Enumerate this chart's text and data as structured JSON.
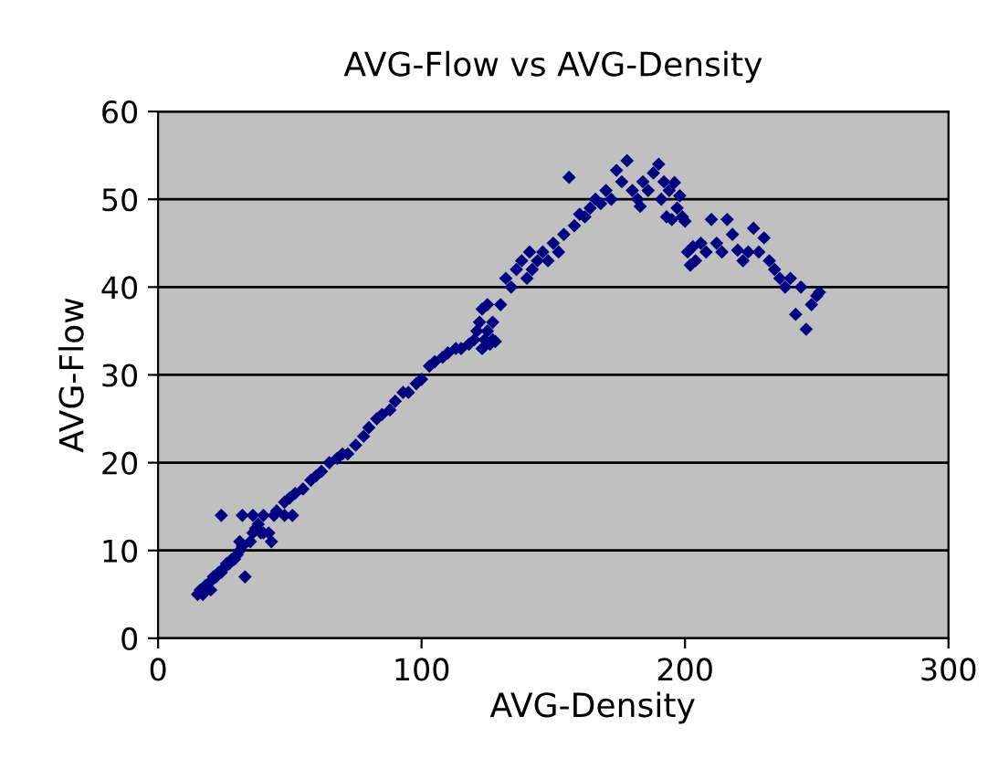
{
  "chart_data": {
    "type": "scatter",
    "title": "AVG-Flow vs AVG-Density",
    "xlabel": "AVG-Density",
    "ylabel": "AVG-Flow",
    "xlim": [
      0,
      300
    ],
    "xticks": [
      0,
      100,
      200,
      300
    ],
    "ylim": [
      0,
      60
    ],
    "yticks": [
      0,
      10,
      20,
      30,
      40,
      50,
      60
    ],
    "grid": "y",
    "marker": "diamond",
    "legend": false,
    "series": [
      {
        "color": "#000080",
        "x": [
          15,
          16,
          17,
          18,
          20,
          20,
          21,
          22,
          23,
          24,
          25,
          26,
          27,
          28,
          29,
          30,
          31,
          32,
          33,
          24,
          31,
          32,
          36,
          40,
          44,
          48,
          51,
          35,
          36,
          37,
          38,
          39,
          40,
          42,
          43,
          45,
          48,
          50,
          52,
          55,
          58,
          60,
          62,
          65,
          68,
          70,
          72,
          75,
          78,
          80,
          83,
          85,
          88,
          90,
          93,
          95,
          98,
          100,
          103,
          105,
          108,
          110,
          113,
          115,
          118,
          120,
          121,
          122,
          123,
          123,
          124,
          125,
          125,
          126,
          127,
          127,
          128,
          130,
          132,
          134,
          136,
          138,
          140,
          141,
          142,
          144,
          146,
          148,
          150,
          152,
          154,
          156,
          158,
          160,
          162,
          164,
          166,
          168,
          170,
          172,
          174,
          176,
          178,
          180,
          182,
          183,
          184,
          186,
          188,
          190,
          191,
          192,
          193,
          194,
          195,
          196,
          197,
          198,
          199,
          200,
          201,
          202,
          203,
          204,
          206,
          208,
          210,
          212,
          214,
          216,
          218,
          220,
          222,
          224,
          226,
          228,
          230,
          232,
          234,
          236,
          238,
          240,
          242,
          244,
          246,
          248,
          250,
          251
        ],
        "values": [
          5,
          5.5,
          5,
          6,
          6.5,
          5.5,
          7,
          7,
          7.5,
          7.5,
          8,
          8.5,
          8.5,
          9,
          9,
          9.5,
          10,
          10.5,
          7,
          14,
          11,
          14,
          14,
          14,
          14,
          14,
          14,
          11,
          12,
          12.5,
          13,
          12,
          12,
          12,
          11,
          14.5,
          15.5,
          16,
          16.5,
          17,
          18,
          18.5,
          19,
          20,
          20.5,
          21,
          21,
          22,
          23,
          24,
          25,
          25.5,
          26,
          27,
          28,
          28,
          29,
          29.5,
          31,
          31.5,
          32,
          32.5,
          33,
          33,
          33.5,
          34,
          35,
          36,
          37.5,
          33,
          34,
          38,
          35,
          33.5,
          36,
          34,
          33.8,
          38,
          41,
          40,
          42,
          43,
          41,
          44,
          42,
          43,
          44,
          43,
          45,
          44,
          46,
          52.5,
          47,
          48.3,
          48,
          49,
          50,
          49.5,
          51,
          50,
          53.3,
          52,
          54.4,
          51,
          50,
          49.2,
          52,
          51,
          53,
          54,
          50,
          52,
          48,
          51,
          47.7,
          51.9,
          49,
          50.4,
          48,
          47.5,
          44,
          42.5,
          44.6,
          43,
          45,
          44,
          47.7,
          45,
          44,
          47.7,
          46,
          44.2,
          43,
          44,
          46.7,
          44,
          45.6,
          43,
          42,
          41,
          40,
          41,
          36.9,
          40,
          35.2,
          38,
          39,
          39.4
        ]
      }
    ]
  }
}
